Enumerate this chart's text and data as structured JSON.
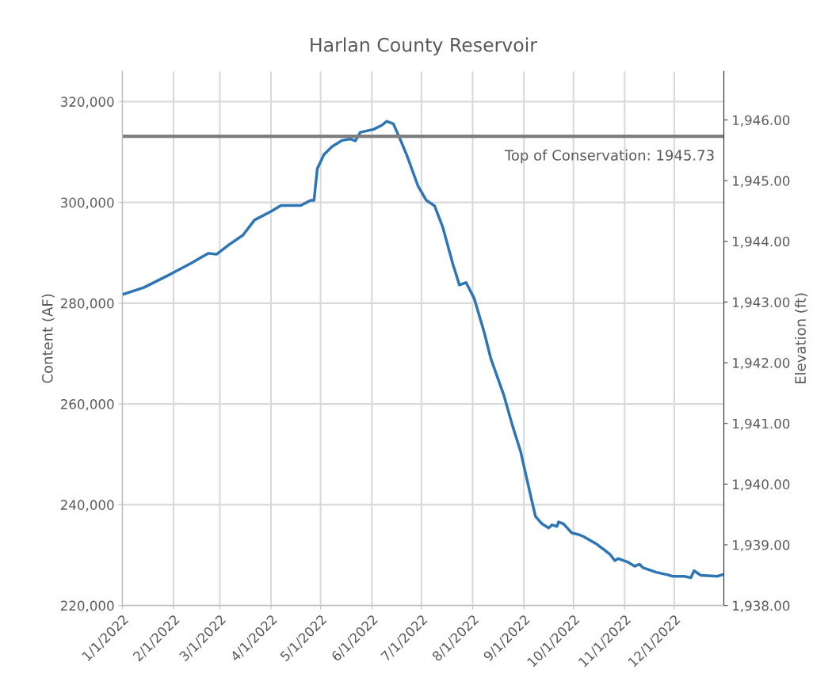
{
  "chart_data": {
    "type": "line",
    "title": "Harlan County Reservoir",
    "ylabel": "Content (AF)",
    "y2label": "Elevation (ft)",
    "x": [
      "2022-01-01",
      "2022-01-14",
      "2022-01-31",
      "2022-02-12",
      "2022-02-22",
      "2022-02-27",
      "2022-03-07",
      "2022-03-15",
      "2022-03-22",
      "2022-04-01",
      "2022-04-07",
      "2022-04-19",
      "2022-04-25",
      "2022-04-27",
      "2022-04-29",
      "2022-05-03",
      "2022-05-08",
      "2022-05-14",
      "2022-05-19",
      "2022-05-22",
      "2022-05-25",
      "2022-06-02",
      "2022-06-07",
      "2022-06-10",
      "2022-06-14",
      "2022-06-17",
      "2022-06-22",
      "2022-06-29",
      "2022-07-04",
      "2022-07-09",
      "2022-07-14",
      "2022-07-20",
      "2022-07-24",
      "2022-07-28",
      "2022-08-02",
      "2022-08-08",
      "2022-08-12",
      "2022-08-20",
      "2022-08-25",
      "2022-08-30",
      "2022-09-03",
      "2022-09-08",
      "2022-09-12",
      "2022-09-16",
      "2022-09-18",
      "2022-09-21",
      "2022-09-22",
      "2022-09-25",
      "2022-09-30",
      "2022-10-04",
      "2022-10-07",
      "2022-10-15",
      "2022-10-23",
      "2022-10-26",
      "2022-10-28",
      "2022-11-03",
      "2022-11-07",
      "2022-11-10",
      "2022-11-12",
      "2022-11-20",
      "2022-11-27",
      "2022-11-30",
      "2022-12-07",
      "2022-12-11",
      "2022-12-13",
      "2022-12-17",
      "2022-12-27",
      "2022-12-30"
    ],
    "series": [
      {
        "color": "#2e75b6",
        "values": [
          281700,
          283100,
          285900,
          288000,
          289900,
          289700,
          291700,
          293500,
          296500,
          298200,
          299400,
          299400,
          300400,
          300400,
          306700,
          309500,
          311100,
          312300,
          312600,
          312200,
          313900,
          314500,
          315300,
          316100,
          315600,
          313400,
          309500,
          303200,
          300400,
          299300,
          295000,
          287800,
          283600,
          284100,
          280900,
          274200,
          269000,
          261600,
          255800,
          250600,
          244800,
          237700,
          236200,
          235400,
          236000,
          235700,
          236600,
          236200,
          234400,
          234100,
          233700,
          232200,
          230200,
          228900,
          229300,
          228600,
          227800,
          228200,
          227500,
          226600,
          226100,
          225800,
          225800,
          225500,
          226900,
          226000,
          225800,
          226100
        ]
      }
    ],
    "xlim": [
      "2022-01-01",
      "2022-12-31"
    ],
    "xticks": [
      {
        "value": "2022-01-01",
        "label": "1/1/2022"
      },
      {
        "value": "2022-02-01",
        "label": "2/1/2022"
      },
      {
        "value": "2022-03-01",
        "label": "3/1/2022"
      },
      {
        "value": "2022-04-01",
        "label": "4/1/2022"
      },
      {
        "value": "2022-05-01",
        "label": "5/1/2022"
      },
      {
        "value": "2022-06-01",
        "label": "6/1/2022"
      },
      {
        "value": "2022-07-01",
        "label": "7/1/2022"
      },
      {
        "value": "2022-08-01",
        "label": "8/1/2022"
      },
      {
        "value": "2022-09-01",
        "label": "9/1/2022"
      },
      {
        "value": "2022-10-01",
        "label": "10/1/2022"
      },
      {
        "value": "2022-11-01",
        "label": "11/1/2022"
      },
      {
        "value": "2022-12-01",
        "label": "12/1/2022"
      }
    ],
    "ylim": [
      220000,
      326000
    ],
    "yticks": [
      {
        "value": 220000,
        "label": "220,000"
      },
      {
        "value": 240000,
        "label": "240,000"
      },
      {
        "value": 260000,
        "label": "260,000"
      },
      {
        "value": 280000,
        "label": "280,000"
      },
      {
        "value": 300000,
        "label": "300,000"
      },
      {
        "value": 320000,
        "label": "320,000"
      }
    ],
    "y2lim": [
      1938,
      1946.8
    ],
    "y2ticks": [
      {
        "value": 1938,
        "label": "1,938.00"
      },
      {
        "value": 1939,
        "label": "1,939.00"
      },
      {
        "value": 1940,
        "label": "1,940.00"
      },
      {
        "value": 1941,
        "label": "1,941.00"
      },
      {
        "value": 1942,
        "label": "1,942.00"
      },
      {
        "value": 1943,
        "label": "1,943.00"
      },
      {
        "value": 1944,
        "label": "1,944.00"
      },
      {
        "value": 1945,
        "label": "1,945.00"
      },
      {
        "value": 1946,
        "label": "1,946.00"
      }
    ],
    "ref_lines": [
      {
        "axis": "y2",
        "value": 1945.73,
        "label": "Top of Conservation: 1945.73",
        "color": "#7f7f7f"
      }
    ],
    "grid": true,
    "legend": false
  }
}
